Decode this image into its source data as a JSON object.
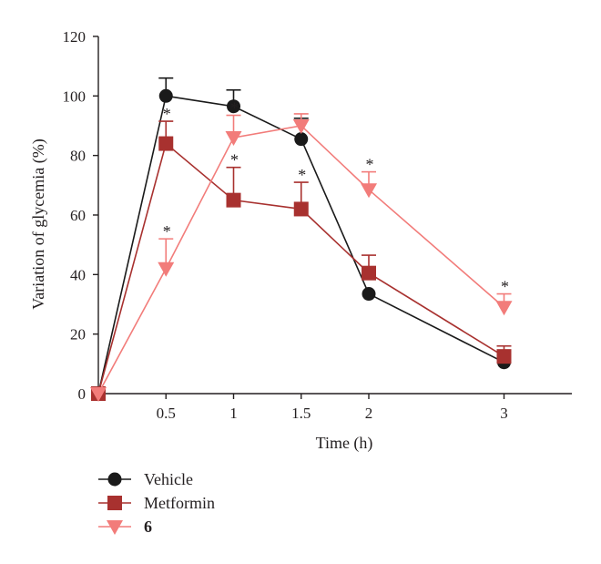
{
  "chart_data": {
    "type": "line",
    "xlabel": "Time (h)",
    "ylabel": "Variation of glycemia (%)",
    "xlim": [
      0,
      3.5
    ],
    "ylim": [
      0,
      120
    ],
    "x_ticks": [
      0.5,
      1,
      1.5,
      2,
      3
    ],
    "x_tick_labels": [
      "0.5",
      "1",
      "1.5",
      "2",
      "3"
    ],
    "y_ticks": [
      0,
      20,
      40,
      60,
      80,
      100,
      120
    ],
    "y_tick_labels": [
      "0",
      "20",
      "40",
      "60",
      "80",
      "100",
      "120"
    ],
    "grid": false,
    "legend_position": "bottom-left",
    "significance_marker": "*",
    "series": [
      {
        "name": "Vehicle",
        "marker": "circle",
        "color": "#1a1a1a",
        "bold_label": false,
        "points": [
          {
            "x": 0,
            "y": 0,
            "err": 0,
            "sig": false
          },
          {
            "x": 0.5,
            "y": 100,
            "err": 6,
            "sig": false
          },
          {
            "x": 1,
            "y": 96.5,
            "err": 5.5,
            "sig": false
          },
          {
            "x": 1.5,
            "y": 85.5,
            "err": 7,
            "sig": false
          },
          {
            "x": 2,
            "y": 33.5,
            "err": 0,
            "sig": false
          },
          {
            "x": 3,
            "y": 10.5,
            "err": 0,
            "sig": false
          }
        ]
      },
      {
        "name": "Metformin",
        "marker": "square",
        "color": "#a8312f",
        "bold_label": false,
        "points": [
          {
            "x": 0,
            "y": 0,
            "err": 0,
            "sig": false
          },
          {
            "x": 0.5,
            "y": 84,
            "err": 7.5,
            "sig": true
          },
          {
            "x": 1,
            "y": 65,
            "err": 11,
            "sig": true
          },
          {
            "x": 1.5,
            "y": 62,
            "err": 9,
            "sig": true
          },
          {
            "x": 2,
            "y": 40.5,
            "err": 6,
            "sig": false
          },
          {
            "x": 3,
            "y": 12.5,
            "err": 3.5,
            "sig": false
          }
        ]
      },
      {
        "name": "6",
        "marker": "triangle-down",
        "color": "#f27c7a",
        "bold_label": true,
        "points": [
          {
            "x": 0,
            "y": 0,
            "err": 0,
            "sig": false
          },
          {
            "x": 0.5,
            "y": 42,
            "err": 10,
            "sig": true
          },
          {
            "x": 1,
            "y": 86,
            "err": 7.5,
            "sig": true
          },
          {
            "x": 1.5,
            "y": 90,
            "err": 4,
            "sig": false
          },
          {
            "x": 2,
            "y": 68.5,
            "err": 6,
            "sig": true
          },
          {
            "x": 3,
            "y": 29,
            "err": 4.5,
            "sig": true
          }
        ]
      }
    ]
  }
}
